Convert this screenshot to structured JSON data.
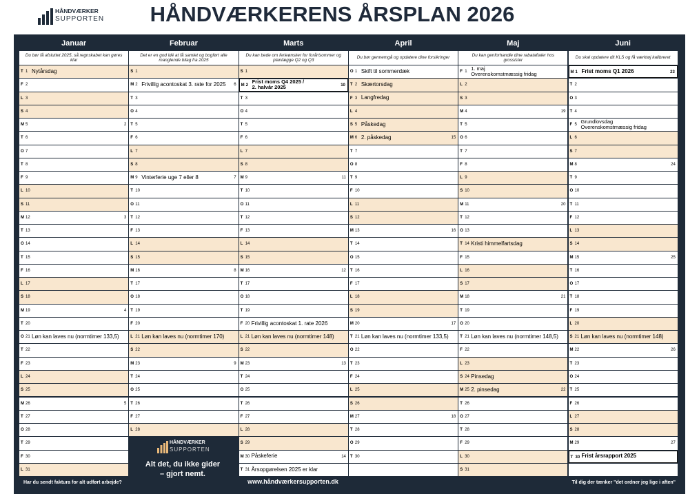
{
  "header": {
    "title": "HÅNDVÆRKERENS ÅRSPLAN 2026"
  },
  "logo": {
    "line1": "HÅNDVÆRKER",
    "line2": "SUPPORTEN"
  },
  "tagline": [
    "Alt det, du ikke gider",
    "– gjort nemt."
  ],
  "footer": {
    "left": "Har du sendt faktura for alt udført arbejde?",
    "center": "www.håndværkersupporten.dk",
    "right": "Til dig der tænker \"det ordner jeg lige i aften\""
  },
  "months": [
    {
      "name": "Januar",
      "tip": "Du bør få afsluttet 2025, så regnskabet kan gøres klar",
      "days": [
        {
          "wd": "T",
          "d": 1,
          "shade": true,
          "event": "Nytårsdag"
        },
        {
          "wd": "F",
          "d": 2
        },
        {
          "wd": "L",
          "d": 3,
          "shade": true
        },
        {
          "wd": "S",
          "d": 4,
          "shade": true
        },
        {
          "wd": "M",
          "d": 5,
          "week": 2
        },
        {
          "wd": "T",
          "d": 6
        },
        {
          "wd": "O",
          "d": 7
        },
        {
          "wd": "T",
          "d": 8
        },
        {
          "wd": "F",
          "d": 9
        },
        {
          "wd": "L",
          "d": 10,
          "shade": true
        },
        {
          "wd": "S",
          "d": 11,
          "shade": true
        },
        {
          "wd": "M",
          "d": 12,
          "week": 3
        },
        {
          "wd": "T",
          "d": 13
        },
        {
          "wd": "O",
          "d": 14
        },
        {
          "wd": "T",
          "d": 15
        },
        {
          "wd": "F",
          "d": 16
        },
        {
          "wd": "L",
          "d": 17,
          "shade": true
        },
        {
          "wd": "S",
          "d": 18,
          "shade": true
        },
        {
          "wd": "M",
          "d": 19,
          "week": 4
        },
        {
          "wd": "T",
          "d": 20
        },
        {
          "wd": "O",
          "d": 21,
          "event": "Løn kan laves nu (normtimer 133,5)"
        },
        {
          "wd": "T",
          "d": 22
        },
        {
          "wd": "F",
          "d": 23
        },
        {
          "wd": "L",
          "d": 24,
          "shade": true
        },
        {
          "wd": "S",
          "d": 25,
          "shade": true
        },
        {
          "wd": "M",
          "d": 26,
          "week": 5
        },
        {
          "wd": "T",
          "d": 27
        },
        {
          "wd": "O",
          "d": 28
        },
        {
          "wd": "T",
          "d": 29
        },
        {
          "wd": "F",
          "d": 30
        },
        {
          "wd": "L",
          "d": 31,
          "shade": true
        }
      ]
    },
    {
      "name": "Februar",
      "tip": "Det er en god idé at få samlet og bogført alle manglende bilag fra 2025",
      "days": [
        {
          "wd": "S",
          "d": 1,
          "shade": true
        },
        {
          "wd": "M",
          "d": 2,
          "week": 6,
          "event": "Frivillig acontoskat 3. rate for 2025"
        },
        {
          "wd": "T",
          "d": 3
        },
        {
          "wd": "O",
          "d": 4
        },
        {
          "wd": "T",
          "d": 5
        },
        {
          "wd": "F",
          "d": 6
        },
        {
          "wd": "L",
          "d": 7,
          "shade": true
        },
        {
          "wd": "S",
          "d": 8,
          "shade": true
        },
        {
          "wd": "M",
          "d": 9,
          "week": 7,
          "event": "Vinterferie uge 7 eller 8"
        },
        {
          "wd": "T",
          "d": 10
        },
        {
          "wd": "O",
          "d": 11
        },
        {
          "wd": "T",
          "d": 12
        },
        {
          "wd": "F",
          "d": 13
        },
        {
          "wd": "L",
          "d": 14,
          "shade": true
        },
        {
          "wd": "S",
          "d": 15,
          "shade": true
        },
        {
          "wd": "M",
          "d": 16,
          "week": 8
        },
        {
          "wd": "T",
          "d": 17
        },
        {
          "wd": "O",
          "d": 18
        },
        {
          "wd": "T",
          "d": 19
        },
        {
          "wd": "F",
          "d": 20
        },
        {
          "wd": "L",
          "d": 21,
          "shade": true,
          "event": "Løn kan laves nu (normtimer 170)"
        },
        {
          "wd": "S",
          "d": 22,
          "shade": true
        },
        {
          "wd": "M",
          "d": 23,
          "week": 9
        },
        {
          "wd": "T",
          "d": 24
        },
        {
          "wd": "O",
          "d": 25
        },
        {
          "wd": "T",
          "d": 26
        },
        {
          "wd": "F",
          "d": 27
        },
        {
          "wd": "L",
          "d": 28,
          "shade": true
        }
      ]
    },
    {
      "name": "Marts",
      "tip": "Du kan bede om ferieønsker for forår/sommer og planlægge Q2 og Q3",
      "days": [
        {
          "wd": "S",
          "d": 1,
          "shade": true
        },
        {
          "wd": "M",
          "d": 2,
          "week": 10,
          "boxed": true,
          "event": [
            "Frist moms Q4 2025 /",
            "2. halvår 2025"
          ]
        },
        {
          "wd": "T",
          "d": 3
        },
        {
          "wd": "O",
          "d": 4
        },
        {
          "wd": "T",
          "d": 5
        },
        {
          "wd": "F",
          "d": 6
        },
        {
          "wd": "L",
          "d": 7,
          "shade": true
        },
        {
          "wd": "S",
          "d": 8,
          "shade": true
        },
        {
          "wd": "M",
          "d": 9,
          "week": 11
        },
        {
          "wd": "T",
          "d": 10
        },
        {
          "wd": "O",
          "d": 11
        },
        {
          "wd": "T",
          "d": 12
        },
        {
          "wd": "F",
          "d": 13
        },
        {
          "wd": "L",
          "d": 14,
          "shade": true
        },
        {
          "wd": "S",
          "d": 15,
          "shade": true
        },
        {
          "wd": "M",
          "d": 16,
          "week": 12
        },
        {
          "wd": "T",
          "d": 17
        },
        {
          "wd": "O",
          "d": 18
        },
        {
          "wd": "T",
          "d": 19
        },
        {
          "wd": "F",
          "d": 20,
          "event": "Frivillig acontoskat 1. rate 2026"
        },
        {
          "wd": "L",
          "d": 21,
          "shade": true,
          "event": "Løn kan laves nu (normtimer 148)"
        },
        {
          "wd": "S",
          "d": 22,
          "shade": true
        },
        {
          "wd": "M",
          "d": 23,
          "week": 13
        },
        {
          "wd": "T",
          "d": 24
        },
        {
          "wd": "O",
          "d": 25
        },
        {
          "wd": "T",
          "d": 26
        },
        {
          "wd": "F",
          "d": 27
        },
        {
          "wd": "L",
          "d": 28,
          "shade": true
        },
        {
          "wd": "S",
          "d": 29,
          "shade": true
        },
        {
          "wd": "M",
          "d": 30,
          "week": 14,
          "event": "Påskeferie"
        },
        {
          "wd": "T",
          "d": 31,
          "event": "Årsopgørelsen 2025 er klar"
        }
      ]
    },
    {
      "name": "April",
      "tip": "Du bør gennemgå og opdatere dine forsikringer",
      "days": [
        {
          "wd": "O",
          "d": 1,
          "event": "Skift til sommerdæk"
        },
        {
          "wd": "T",
          "d": 2,
          "shade": true,
          "event": "Skærtorsdag"
        },
        {
          "wd": "F",
          "d": 3,
          "shade": true,
          "event": "Langfredag"
        },
        {
          "wd": "L",
          "d": 4,
          "shade": true
        },
        {
          "wd": "S",
          "d": 5,
          "shade": true,
          "event": "Påskedag"
        },
        {
          "wd": "M",
          "d": 6,
          "week": 15,
          "shade": true,
          "event": "2. påskedag"
        },
        {
          "wd": "T",
          "d": 7
        },
        {
          "wd": "O",
          "d": 8
        },
        {
          "wd": "T",
          "d": 9
        },
        {
          "wd": "F",
          "d": 10
        },
        {
          "wd": "L",
          "d": 11,
          "shade": true
        },
        {
          "wd": "S",
          "d": 12,
          "shade": true
        },
        {
          "wd": "M",
          "d": 13,
          "week": 16
        },
        {
          "wd": "T",
          "d": 14
        },
        {
          "wd": "O",
          "d": 15
        },
        {
          "wd": "T",
          "d": 16
        },
        {
          "wd": "F",
          "d": 17
        },
        {
          "wd": "L",
          "d": 18,
          "shade": true
        },
        {
          "wd": "S",
          "d": 19,
          "shade": true
        },
        {
          "wd": "M",
          "d": 20,
          "week": 17
        },
        {
          "wd": "T",
          "d": 21,
          "event": "Løn kan laves nu (normtimer 133,5)"
        },
        {
          "wd": "O",
          "d": 22
        },
        {
          "wd": "T",
          "d": 23
        },
        {
          "wd": "F",
          "d": 24
        },
        {
          "wd": "L",
          "d": 25,
          "shade": true
        },
        {
          "wd": "S",
          "d": 26,
          "shade": true
        },
        {
          "wd": "M",
          "d": 27,
          "week": 18
        },
        {
          "wd": "T",
          "d": 28
        },
        {
          "wd": "O",
          "d": 29
        },
        {
          "wd": "T",
          "d": 30
        }
      ]
    },
    {
      "name": "Maj",
      "tip": "Du kan genforhandle dine rabataftaler hos grossister",
      "days": [
        {
          "wd": "F",
          "d": 1,
          "event": [
            "1. maj",
            "Overenskomstmæssig fridag"
          ]
        },
        {
          "wd": "L",
          "d": 2,
          "shade": true
        },
        {
          "wd": "S",
          "d": 3,
          "shade": true
        },
        {
          "wd": "M",
          "d": 4,
          "week": 19
        },
        {
          "wd": "T",
          "d": 5
        },
        {
          "wd": "O",
          "d": 6
        },
        {
          "wd": "T",
          "d": 7
        },
        {
          "wd": "F",
          "d": 8
        },
        {
          "wd": "L",
          "d": 9,
          "shade": true
        },
        {
          "wd": "S",
          "d": 10,
          "shade": true
        },
        {
          "wd": "M",
          "d": 11,
          "week": 20
        },
        {
          "wd": "T",
          "d": 12
        },
        {
          "wd": "O",
          "d": 13
        },
        {
          "wd": "T",
          "d": 14,
          "shade": true,
          "event": "Kristi himmelfartsdag"
        },
        {
          "wd": "F",
          "d": 15
        },
        {
          "wd": "L",
          "d": 16,
          "shade": true
        },
        {
          "wd": "S",
          "d": 17,
          "shade": true
        },
        {
          "wd": "M",
          "d": 18,
          "week": 21
        },
        {
          "wd": "T",
          "d": 19
        },
        {
          "wd": "O",
          "d": 20
        },
        {
          "wd": "T",
          "d": 21,
          "event": "Løn kan laves nu (normtimer 148,5)"
        },
        {
          "wd": "F",
          "d": 22
        },
        {
          "wd": "L",
          "d": 23,
          "shade": true
        },
        {
          "wd": "S",
          "d": 24,
          "shade": true,
          "event": "Pinsedag"
        },
        {
          "wd": "M",
          "d": 25,
          "week": 22,
          "shade": true,
          "event": "2. pinsedag"
        },
        {
          "wd": "T",
          "d": 26
        },
        {
          "wd": "O",
          "d": 27
        },
        {
          "wd": "T",
          "d": 28
        },
        {
          "wd": "F",
          "d": 29
        },
        {
          "wd": "L",
          "d": 30,
          "shade": true
        },
        {
          "wd": "S",
          "d": 31,
          "shade": true
        }
      ]
    },
    {
      "name": "Juni",
      "tip": "Du skal opdatere dit KLS og få værktøj kalibreret",
      "days": [
        {
          "wd": "M",
          "d": 1,
          "week": 23,
          "boxed": true,
          "event": "Frist moms Q1 2026"
        },
        {
          "wd": "T",
          "d": 2
        },
        {
          "wd": "O",
          "d": 3
        },
        {
          "wd": "T",
          "d": 4
        },
        {
          "wd": "F",
          "d": 5,
          "event": [
            "Grundlovsdag",
            "Overenskomstmæssig fridag"
          ]
        },
        {
          "wd": "L",
          "d": 6,
          "shade": true
        },
        {
          "wd": "S",
          "d": 7,
          "shade": true
        },
        {
          "wd": "M",
          "d": 8,
          "week": 24
        },
        {
          "wd": "T",
          "d": 9
        },
        {
          "wd": "O",
          "d": 10
        },
        {
          "wd": "T",
          "d": 11
        },
        {
          "wd": "F",
          "d": 12
        },
        {
          "wd": "L",
          "d": 13,
          "shade": true
        },
        {
          "wd": "S",
          "d": 14,
          "shade": true
        },
        {
          "wd": "M",
          "d": 15,
          "week": 25
        },
        {
          "wd": "T",
          "d": 16
        },
        {
          "wd": "O",
          "d": 17
        },
        {
          "wd": "T",
          "d": 18
        },
        {
          "wd": "F",
          "d": 19
        },
        {
          "wd": "L",
          "d": 20,
          "shade": true
        },
        {
          "wd": "S",
          "d": 21,
          "shade": true,
          "event": "Løn kan laves nu (normtimer 148)"
        },
        {
          "wd": "M",
          "d": 22,
          "week": 26
        },
        {
          "wd": "T",
          "d": 23
        },
        {
          "wd": "O",
          "d": 24
        },
        {
          "wd": "T",
          "d": 25
        },
        {
          "wd": "F",
          "d": 26
        },
        {
          "wd": "L",
          "d": 27,
          "shade": true
        },
        {
          "wd": "S",
          "d": 28,
          "shade": true
        },
        {
          "wd": "M",
          "d": 29,
          "week": 27
        },
        {
          "wd": "T",
          "d": 30,
          "boxed": true,
          "event": "Frist årsrapport 2025"
        }
      ]
    }
  ]
}
